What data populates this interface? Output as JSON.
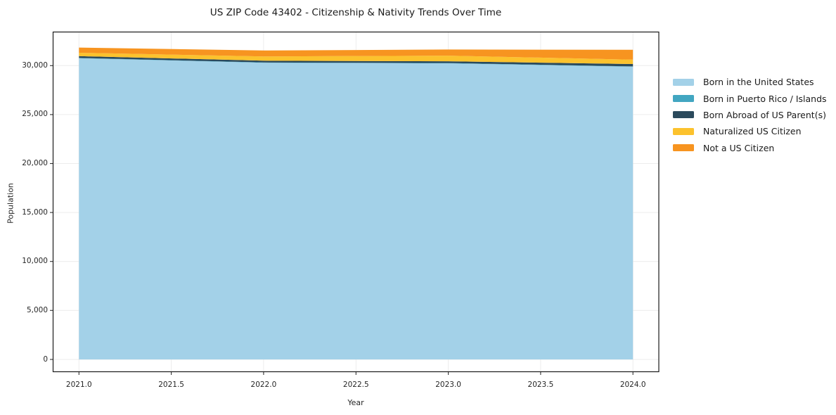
{
  "figure": {
    "title": "US ZIP Code 43402 - Citizenship & Nativity Trends Over Time"
  },
  "chart_data": {
    "type": "area",
    "stacked": true,
    "title": "US ZIP Code 43402 - Citizenship & Nativity Trends Over Time",
    "xlabel": "Year",
    "ylabel": "Population",
    "x": [
      2021,
      2022,
      2023,
      2024
    ],
    "series": [
      {
        "name": "Born in the United States",
        "color": "#a3d1e8",
        "values": [
          30750,
          30290,
          30230,
          29890
        ]
      },
      {
        "name": "Born in Puerto Rico / Islands",
        "color": "#42a6c1",
        "values": [
          30,
          30,
          30,
          30
        ]
      },
      {
        "name": "Born Abroad of US Parent(s)",
        "color": "#2b4a5c",
        "values": [
          190,
          180,
          180,
          240
        ]
      },
      {
        "name": "Naturalized US Citizen",
        "color": "#fcc22d",
        "values": [
          340,
          430,
          580,
          450
        ]
      },
      {
        "name": "Not a US Citizen",
        "color": "#f79420",
        "values": [
          530,
          610,
          620,
          1000
        ]
      }
    ],
    "totals": [
      31840,
      31540,
      31640,
      31610
    ],
    "x_ticks": [
      {
        "value": 2021.0,
        "label": "2021.0"
      },
      {
        "value": 2021.5,
        "label": "2021.5"
      },
      {
        "value": 2022.0,
        "label": "2022.0"
      },
      {
        "value": 2022.5,
        "label": "2022.5"
      },
      {
        "value": 2023.0,
        "label": "2023.0"
      },
      {
        "value": 2023.5,
        "label": "2023.5"
      },
      {
        "value": 2024.0,
        "label": "2024.0"
      }
    ],
    "y_ticks": [
      {
        "value": 0,
        "label": "0"
      },
      {
        "value": 5000,
        "label": "5,000"
      },
      {
        "value": 10000,
        "label": "10,000"
      },
      {
        "value": 15000,
        "label": "15,000"
      },
      {
        "value": 20000,
        "label": "20,000"
      },
      {
        "value": 25000,
        "label": "25,000"
      },
      {
        "value": 30000,
        "label": "30,000"
      }
    ],
    "xlim": [
      2020.86,
      2024.14
    ],
    "ylim": [
      -1260,
      33430
    ],
    "grid": true,
    "legend_position": "right",
    "colors": {
      "grid": "#e6e6e6",
      "spine": "#1a1a1a",
      "tick": "#333333",
      "background": "#ffffff"
    }
  }
}
